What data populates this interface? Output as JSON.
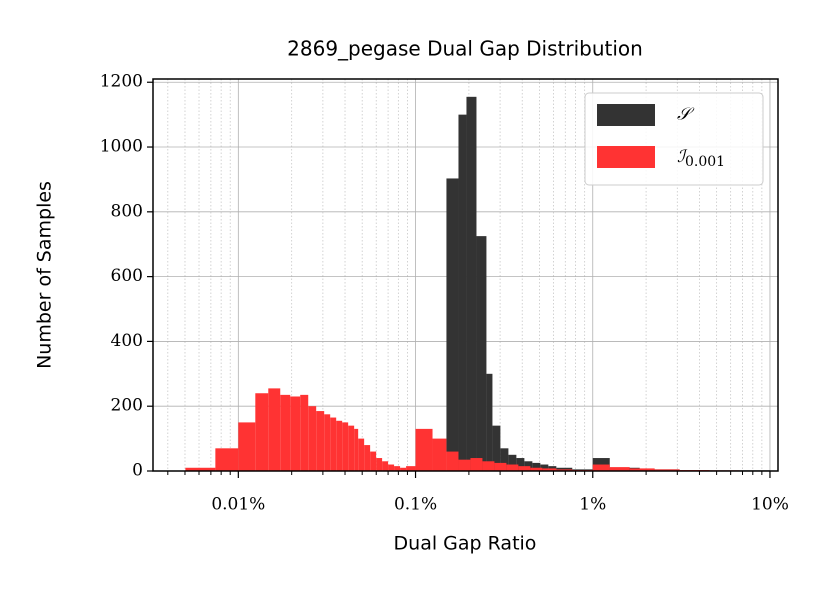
{
  "chart_data": {
    "type": "histogram",
    "title": "2869_pegase Dual Gap Distribution",
    "x_label": "Dual Gap Ratio",
    "y_label": "Number of Samples",
    "x_scale": "log",
    "grid": true,
    "minor_grid": true,
    "legend_position": "upper right",
    "xlim": [
      0.0033,
      11.1
    ],
    "ylim": [
      0,
      1210
    ],
    "xticks": [
      {
        "value": 0.01,
        "label": "0.01%"
      },
      {
        "value": 0.1,
        "label": "0.1%"
      },
      {
        "value": 1,
        "label": "1%"
      },
      {
        "value": 10,
        "label": "10%"
      }
    ],
    "yticks": [
      0,
      200,
      400,
      600,
      800,
      1000,
      1200
    ],
    "series": [
      {
        "name": "𝒮",
        "color": "#333333",
        "bins": [
          0.1494,
          0.1747,
          0.1938,
          0.2207,
          0.2512,
          0.2716,
          0.3012,
          0.3342,
          0.3707,
          0.4113,
          0.4563,
          0.5061,
          0.5615,
          0.623,
          0.7664,
          1,
          1.247,
          1.84,
          3.091,
          10
        ],
        "values": [
          903,
          1100,
          1155,
          725,
          300,
          140,
          70,
          50,
          40,
          30,
          25,
          20,
          15,
          10,
          5,
          40,
          10,
          5,
          2
        ]
      },
      {
        "name": "ℐ0.001",
        "color": "#ff3333",
        "bins": [
          0.005027,
          0.00742,
          0.01,
          0.01247,
          0.01476,
          0.01724,
          0.01963,
          0.02235,
          0.0248,
          0.0275,
          0.03051,
          0.03299,
          0.03566,
          0.03854,
          0.04166,
          0.04504,
          0.04745,
          0.05128,
          0.05543,
          0.05992,
          0.06477,
          0.07,
          0.07567,
          0.0818,
          0.08843,
          0.1,
          0.1247,
          0.1494,
          0.1747,
          0.2041,
          0.2385,
          0.2787,
          0.3256,
          0.3804,
          0.4445,
          0.5194,
          0.623,
          0.7664,
          1,
          1.247,
          1.616,
          2.235,
          3.091,
          4.563,
          6.733,
          10
        ],
        "values": [
          10,
          70,
          150,
          240,
          255,
          235,
          230,
          235,
          200,
          185,
          175,
          165,
          155,
          150,
          140,
          130,
          100,
          80,
          60,
          40,
          30,
          20,
          15,
          10,
          15,
          130,
          100,
          60,
          35,
          40,
          30,
          25,
          20,
          15,
          10,
          8,
          5,
          3,
          20,
          12,
          8,
          5,
          3,
          2,
          1
        ]
      }
    ]
  }
}
